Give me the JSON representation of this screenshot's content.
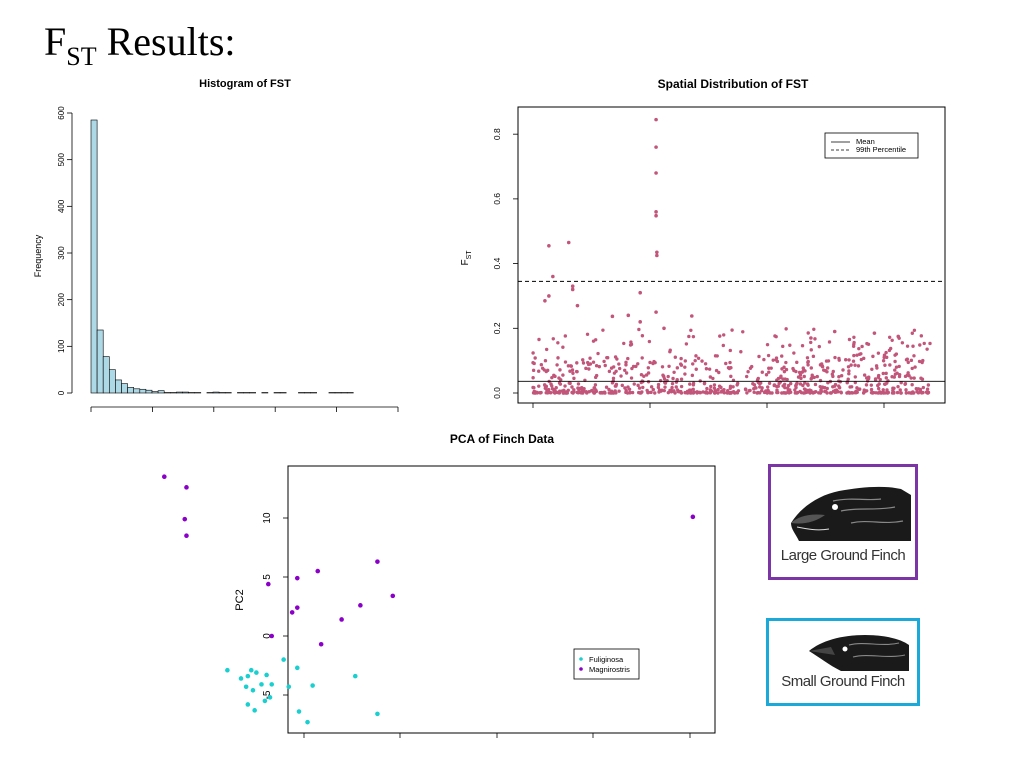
{
  "slide": {
    "title_main": "F",
    "title_sub": "ST",
    "title_rest": " Results:"
  },
  "chart_data": [
    {
      "type": "bar",
      "title": "Histogram of FST",
      "xlabel": "",
      "ylabel": "Frequency",
      "ylim": [
        0,
        600
      ],
      "yticks": [
        0,
        100,
        200,
        300,
        400,
        500,
        600
      ],
      "bin_width": 0.02,
      "bins_start": 0,
      "values": [
        585,
        135,
        78,
        50,
        28,
        20,
        12,
        9,
        8,
        6,
        3,
        5,
        1,
        1,
        2,
        2,
        1,
        1,
        0,
        1,
        2,
        1,
        1,
        0,
        1,
        1,
        1,
        0,
        1,
        0,
        1,
        1,
        0,
        0,
        1,
        1,
        1,
        0,
        0,
        1,
        1,
        1,
        1
      ],
      "bar_color": "#add8e6",
      "edge_color": "#000000"
    },
    {
      "type": "scatter",
      "title": "Spatial Distribution of FST",
      "ylabel_main": "F",
      "ylabel_sub": "ST",
      "xlabel": "",
      "ylim": [
        0,
        0.85
      ],
      "yticks": [
        0.0,
        0.2,
        0.4,
        0.6,
        0.8
      ],
      "point_color": "#c2557a",
      "reference_lines": [
        {
          "name": "Mean",
          "y": 0.036,
          "style": "solid"
        },
        {
          "name": "99th Percentile",
          "y": 0.345,
          "style": "dashed"
        }
      ],
      "legend": {
        "position": "top-right",
        "entries": [
          "Mean",
          "99th Percentile"
        ]
      },
      "notable_points": [
        {
          "x": 0.31,
          "y": 0.845
        },
        {
          "x": 0.31,
          "y": 0.76
        },
        {
          "x": 0.31,
          "y": 0.68
        },
        {
          "x": 0.31,
          "y": 0.56
        },
        {
          "x": 0.31,
          "y": 0.548
        },
        {
          "x": 0.312,
          "y": 0.435
        },
        {
          "x": 0.312,
          "y": 0.425
        },
        {
          "x": 0.04,
          "y": 0.455
        },
        {
          "x": 0.09,
          "y": 0.465
        },
        {
          "x": 0.05,
          "y": 0.36
        },
        {
          "x": 0.1,
          "y": 0.33
        },
        {
          "x": 0.1,
          "y": 0.32
        },
        {
          "x": 0.27,
          "y": 0.31
        },
        {
          "x": 0.04,
          "y": 0.3
        },
        {
          "x": 0.03,
          "y": 0.285
        },
        {
          "x": 0.112,
          "y": 0.27
        },
        {
          "x": 0.31,
          "y": 0.25
        },
        {
          "x": 0.24,
          "y": 0.24
        },
        {
          "x": 0.4,
          "y": 0.238
        },
        {
          "x": 0.27,
          "y": 0.22
        },
        {
          "x": 0.2,
          "y": 0.237
        },
        {
          "x": 0.33,
          "y": 0.2
        },
        {
          "x": 0.76,
          "y": 0.19
        },
        {
          "x": 0.86,
          "y": 0.185
        },
        {
          "x": 0.92,
          "y": 0.175
        },
        {
          "x": 0.7,
          "y": 0.17
        }
      ]
    },
    {
      "type": "scatter",
      "title": "PCA of Finch Data",
      "xlabel": "",
      "ylabel": "PC2",
      "ylim": [
        -7.6,
        14
      ],
      "yticks": [
        -5,
        0,
        5,
        10
      ],
      "legend": {
        "position": "bottom-right",
        "entries": [
          "Fuliginosa",
          "Magnirostris"
        ]
      },
      "series": [
        {
          "name": "Fuliginosa",
          "color": "#19cfcf",
          "points": [
            [
              -10.3,
              -2.9
            ],
            [
              -9.5,
              -3.6
            ],
            [
              -9.1,
              -3.4
            ],
            [
              -8.9,
              -2.9
            ],
            [
              -8.6,
              -3.1
            ],
            [
              -8.0,
              -3.3
            ],
            [
              -9.2,
              -4.3
            ],
            [
              -8.8,
              -4.6
            ],
            [
              -8.3,
              -4.1
            ],
            [
              -7.7,
              -4.1
            ],
            [
              -7.0,
              -2.0
            ],
            [
              -6.7,
              -4.3
            ],
            [
              -6.2,
              -2.7
            ],
            [
              -5.3,
              -4.2
            ],
            [
              -2.8,
              -3.4
            ],
            [
              -9.1,
              -5.8
            ],
            [
              -8.7,
              -6.3
            ],
            [
              -8.1,
              -5.5
            ],
            [
              -6.1,
              -6.4
            ],
            [
              -5.6,
              -7.3
            ],
            [
              -7.8,
              -5.2
            ],
            [
              -1.5,
              -6.6
            ]
          ]
        },
        {
          "name": "Magnirostris",
          "color": "#8b00c9",
          "points": [
            [
              -14.0,
              13.5
            ],
            [
              -12.7,
              12.6
            ],
            [
              -12.8,
              9.9
            ],
            [
              -12.7,
              8.5
            ],
            [
              -7.9,
              4.4
            ],
            [
              -6.2,
              4.9
            ],
            [
              -5.0,
              5.5
            ],
            [
              -1.5,
              6.3
            ],
            [
              -0.6,
              3.4
            ],
            [
              -2.5,
              2.6
            ],
            [
              -3.6,
              1.4
            ],
            [
              -6.2,
              2.4
            ],
            [
              -6.5,
              2.0
            ],
            [
              -7.7,
              0.0
            ],
            [
              -4.8,
              -0.7
            ],
            [
              17.0,
              10.1
            ]
          ]
        }
      ]
    }
  ],
  "cards": {
    "large": {
      "label": "Large Ground Finch",
      "border": "#7b35a5"
    },
    "small": {
      "label": "Small Ground Finch",
      "border": "#1aa9d8"
    }
  }
}
